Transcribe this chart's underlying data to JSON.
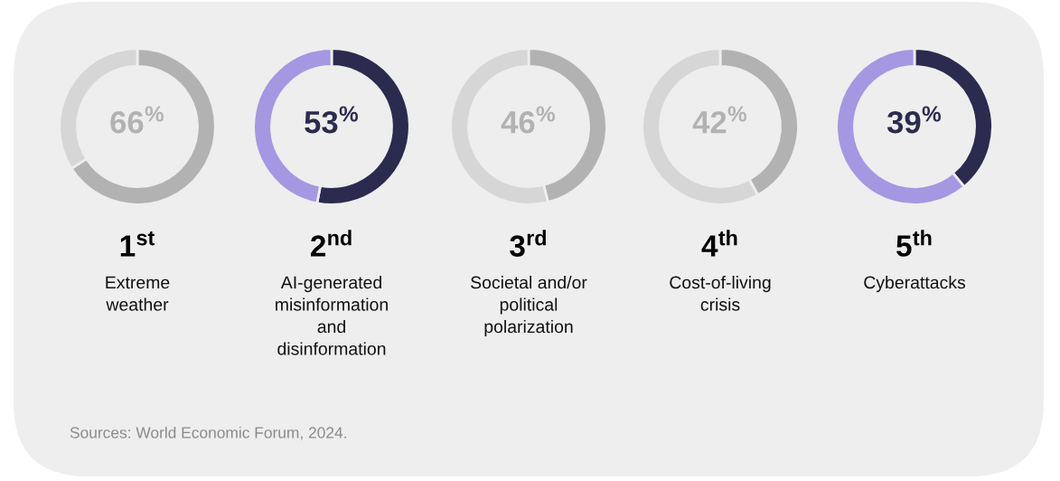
{
  "chart_data": [
    {
      "type": "donut",
      "title": "1$^{st}$",
      "subtitle": "Extreme\nweather",
      "categories": [
        null,
        null
      ],
      "values": [
        66,
        34
      ],
      "colors": [
        "#b2b2b2",
        "#d6d6d6"
      ],
      "value_labels": [
        "66$^{%}$",
        null
      ],
      "legend": false,
      "annotations": [
        "Sources: World Economic Forum, 2024."
      ]
    },
    {
      "type": "donut",
      "title": "2$^{nd}$",
      "subtitle": "AI-generated\nmisinformation\nand\ndisinformation",
      "categories": [
        null,
        null
      ],
      "values": [
        53,
        47
      ],
      "colors": [
        "#2b2a4f",
        "#a597e2"
      ],
      "value_labels": [
        "53$^{%}$",
        null
      ],
      "legend": false
    },
    {
      "type": "donut",
      "title": "3$^{rd}$",
      "subtitle": "Societal and/or\npolitical\npolarization",
      "categories": [
        null,
        null
      ],
      "values": [
        46,
        54
      ],
      "colors": [
        "#b2b2b2",
        "#d6d6d6"
      ],
      "value_labels": [
        "46$^{%}$",
        null
      ],
      "legend": false
    },
    {
      "type": "donut",
      "title": "4$^{th}$",
      "subtitle": "Cost-of-living\ncrisis",
      "categories": [
        null,
        null
      ],
      "values": [
        42,
        58
      ],
      "colors": [
        "#b2b2b2",
        "#d6d6d6"
      ],
      "value_labels": [
        "42$^{%}$",
        null
      ],
      "legend": false
    },
    {
      "type": "donut",
      "title": "5$^{th}$",
      "subtitle": "Cyberattacks",
      "categories": [
        null,
        null
      ],
      "values": [
        39,
        61
      ],
      "colors": [
        "#2b2a4f",
        "#a597e2"
      ],
      "value_labels": [
        "39$^{%}$",
        null
      ],
      "legend": false
    }
  ]
}
